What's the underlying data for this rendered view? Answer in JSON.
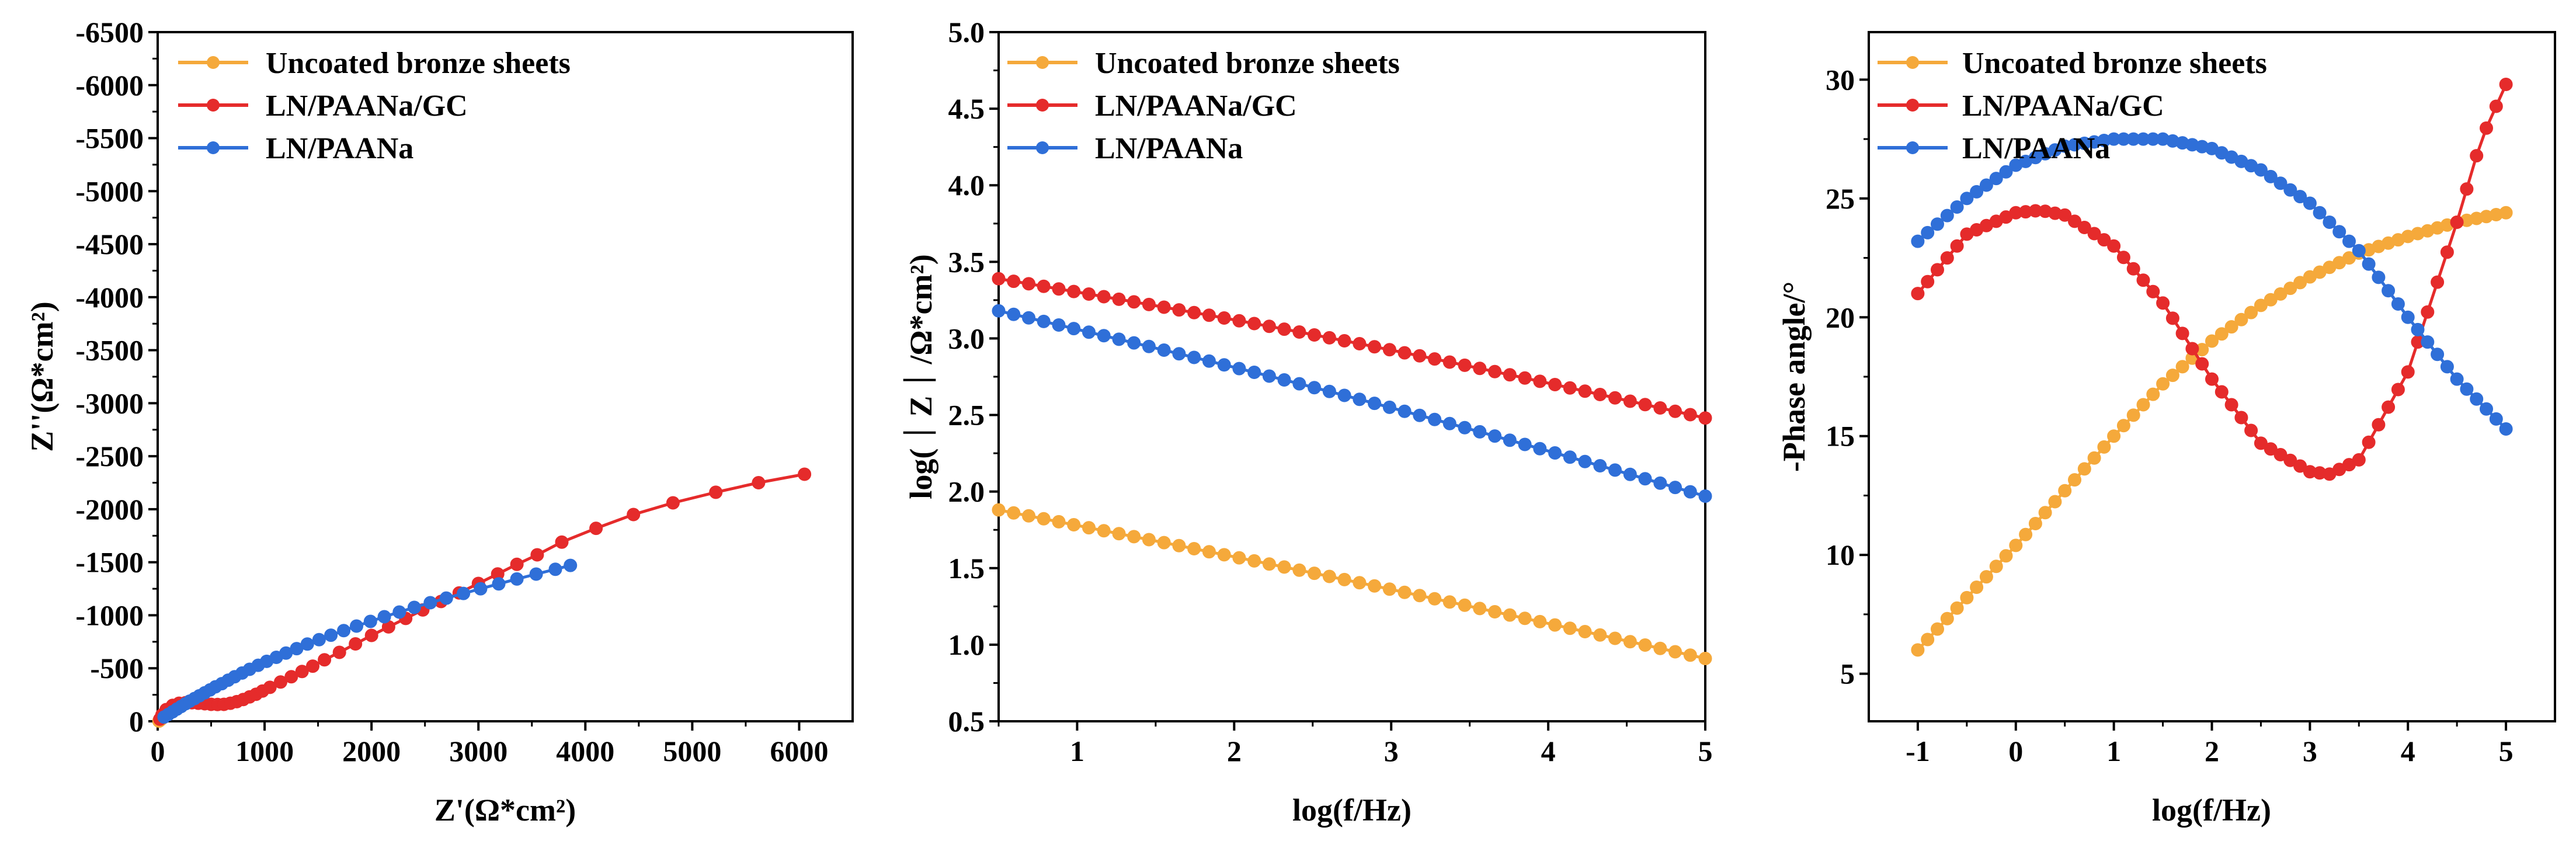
{
  "colors": {
    "uncoated": "#f5a93b",
    "gc": "#e52b2b",
    "paana": "#2f6fd8"
  },
  "chart_data": [
    {
      "type": "scatter",
      "xlabel": "Z'(Ω*cm²)",
      "ylabel": "Z''(Ω*cm²)",
      "xlim": [
        0,
        6500
      ],
      "ylim": [
        -6500,
        0
      ],
      "xticks": [
        0,
        1000,
        2000,
        3000,
        4000,
        5000,
        6000
      ],
      "yticks": [
        0,
        -500,
        -1000,
        -1500,
        -2000,
        -2500,
        -3000,
        -3500,
        -4000,
        -4500,
        -5000,
        -5500,
        -6000,
        -6500
      ],
      "legend": [
        "Uncoated bronze sheets",
        "LN/PAANa/GC",
        "LN/PAANa"
      ],
      "series": [
        {
          "name": "Uncoated bronze sheets",
          "color": "#f5a93b",
          "x": [
            12,
            15,
            18,
            22,
            26,
            31,
            37,
            43,
            50,
            58,
            67,
            76,
            86,
            96
          ],
          "y": [
            -2,
            -4,
            -7,
            -10,
            -14,
            -19,
            -24,
            -30,
            -37,
            -44,
            -52,
            -60,
            -68,
            -76
          ]
        },
        {
          "name": "LN/PAANa/GC",
          "color": "#e52b2b",
          "x": [
            20,
            40,
            80,
            140,
            200,
            260,
            320,
            380,
            440,
            500,
            560,
            620,
            680,
            740,
            800,
            860,
            920,
            980,
            1050,
            1150,
            1250,
            1350,
            1450,
            1560,
            1700,
            1850,
            2000,
            2160,
            2320,
            2480,
            2650,
            2820,
            3000,
            3180,
            3360,
            3550,
            3780,
            4100,
            4450,
            4820,
            5220,
            5620,
            6050
          ],
          "y": [
            -20,
            -60,
            -110,
            -150,
            -170,
            -175,
            -175,
            -170,
            -165,
            -160,
            -158,
            -160,
            -170,
            -185,
            -205,
            -230,
            -255,
            -285,
            -320,
            -370,
            -420,
            -470,
            -520,
            -580,
            -650,
            -730,
            -810,
            -890,
            -970,
            -1050,
            -1130,
            -1210,
            -1300,
            -1390,
            -1480,
            -1570,
            -1690,
            -1820,
            -1950,
            -2060,
            -2160,
            -2250,
            -2330
          ]
        },
        {
          "name": "LN/PAANa",
          "color": "#2f6fd8",
          "x": [
            60,
            100,
            140,
            180,
            220,
            260,
            300,
            345,
            390,
            440,
            490,
            540,
            600,
            660,
            720,
            790,
            860,
            940,
            1020,
            1110,
            1200,
            1300,
            1400,
            1510,
            1620,
            1740,
            1860,
            1990,
            2120,
            2260,
            2400,
            2550,
            2700,
            2860,
            3020,
            3190,
            3360,
            3540,
            3720,
            3860
          ],
          "y": [
            -40,
            -65,
            -90,
            -115,
            -140,
            -165,
            -190,
            -215,
            -240,
            -268,
            -296,
            -325,
            -355,
            -388,
            -420,
            -455,
            -490,
            -528,
            -565,
            -603,
            -643,
            -685,
            -728,
            -770,
            -812,
            -855,
            -898,
            -942,
            -986,
            -1030,
            -1074,
            -1118,
            -1162,
            -1206,
            -1250,
            -1296,
            -1342,
            -1388,
            -1434,
            -1470
          ]
        }
      ]
    },
    {
      "type": "scatter",
      "xlabel": "log(f/Hz)",
      "ylabel": "log(｜Z｜/Ω*cm²)",
      "xlim": [
        0.5,
        5
      ],
      "ylim": [
        0.5,
        5.0
      ],
      "xticks": [
        1,
        2,
        3,
        4,
        5
      ],
      "yticks": [
        "0.5",
        "1.0",
        "1.5",
        "2.0",
        "2.5",
        "3.0",
        "3.5",
        "4.0",
        "4.5",
        "5.0"
      ],
      "legend": [
        "Uncoated bronze sheets",
        "LN/PAANa/GC",
        "LN/PAANa"
      ],
      "series": [
        {
          "name": "Uncoated bronze sheets",
          "color": "#f5a93b",
          "logf": [
            0.5,
            5
          ],
          "logz": [
            1.88,
            0.91
          ]
        },
        {
          "name": "LN/PAANa/GC",
          "color": "#e52b2b",
          "logf": [
            0.5,
            5
          ],
          "logz": [
            3.39,
            2.48
          ]
        },
        {
          "name": "LN/PAANa",
          "color": "#2f6fd8",
          "logf": [
            0.5,
            5
          ],
          "logz": [
            3.18,
            1.97
          ]
        }
      ]
    },
    {
      "type": "scatter",
      "xlabel": "log(f/Hz)",
      "ylabel": "-Phase angle/°",
      "xlim": [
        -1.5,
        5.5
      ],
      "ylim": [
        3,
        32
      ],
      "xticks": [
        -1,
        0,
        1,
        2,
        3,
        4,
        5
      ],
      "yticks": [
        5,
        10,
        15,
        20,
        25,
        30
      ],
      "legend": [
        "Uncoated bronze sheets",
        "LN/PAANa/GC",
        "LN/PAANa"
      ],
      "series": [
        {
          "name": "Uncoated bronze sheets",
          "color": "#f5a93b",
          "logf": [
            -1,
            -0.5,
            0,
            0.5,
            1,
            1.5,
            2,
            2.5,
            3,
            3.5,
            4,
            4.5,
            5
          ],
          "phase": [
            6.0,
            8.2,
            10.4,
            12.7,
            15.0,
            17.2,
            19.0,
            20.5,
            21.7,
            22.7,
            23.4,
            24.0,
            24.4
          ]
        },
        {
          "name": "LN/PAANa/GC",
          "color": "#e52b2b",
          "logf": [
            -1,
            -0.5,
            0,
            0.25,
            0.5,
            1,
            1.5,
            2,
            2.5,
            3,
            3.2,
            3.5,
            4,
            4.5,
            4.75,
            5
          ],
          "phase": [
            21.0,
            23.5,
            24.4,
            24.5,
            24.3,
            23.0,
            20.6,
            17.4,
            14.7,
            13.5,
            13.4,
            14.0,
            17.7,
            24.0,
            27.5,
            29.8
          ]
        },
        {
          "name": "LN/PAANa",
          "color": "#2f6fd8",
          "logf": [
            -1,
            -0.5,
            0,
            0.5,
            1,
            1.5,
            2,
            2.5,
            3,
            3.5,
            4,
            4.5,
            5
          ],
          "phase": [
            23.2,
            25.0,
            26.4,
            27.2,
            27.5,
            27.5,
            27.1,
            26.2,
            24.8,
            22.8,
            20.0,
            17.4,
            15.3
          ]
        }
      ]
    }
  ]
}
